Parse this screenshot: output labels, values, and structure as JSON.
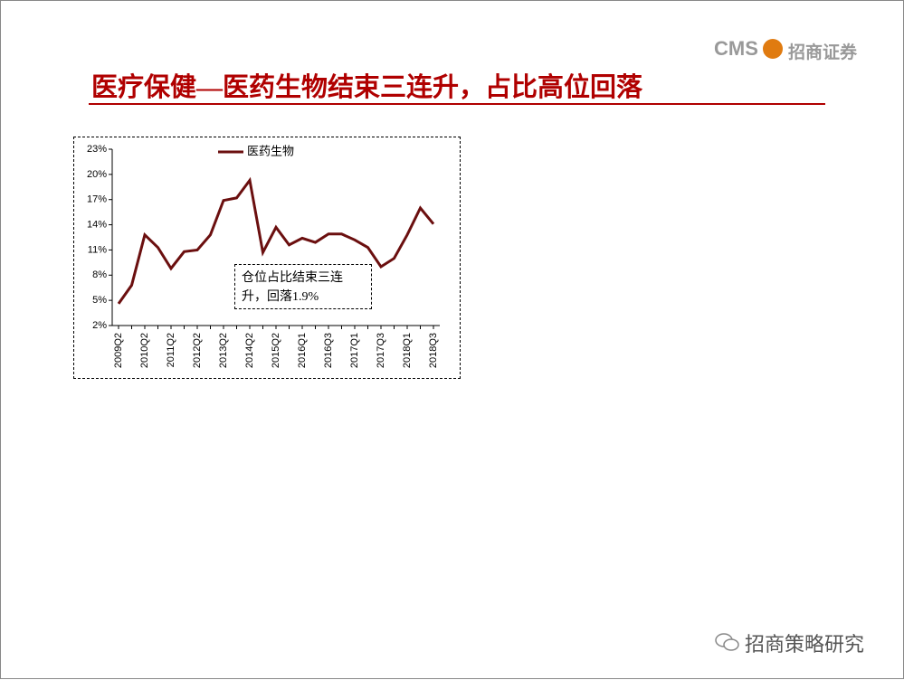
{
  "logo": {
    "brand": "CMS",
    "name": "招商证券"
  },
  "slide_title": "医疗保健—医药生物结束三连升，占比高位回落",
  "footer": "招商策略研究",
  "chart_data": {
    "type": "line",
    "categories": [
      "2009Q2",
      null,
      "2010Q2",
      null,
      "2011Q2",
      null,
      "2012Q2",
      null,
      "2013Q2",
      null,
      "2014Q2",
      null,
      "2015Q2",
      null,
      "2016Q1",
      null,
      "2016Q3",
      null,
      "2017Q1",
      null,
      "2017Q3",
      null,
      "2018Q1",
      null,
      "2018Q3"
    ],
    "series": [
      {
        "name": "医药生物",
        "color": "#6b0f0f",
        "values": [
          4.6,
          6.8,
          12.8,
          11.3,
          8.8,
          10.8,
          11.0,
          12.8,
          16.9,
          17.2,
          19.3,
          10.7,
          13.7,
          11.6,
          12.4,
          11.9,
          12.9,
          12.9,
          12.2,
          11.3,
          9.0,
          10.0,
          12.8,
          16.0,
          14.1
        ]
      }
    ],
    "ylim": [
      2,
      23
    ],
    "yticks": [
      {
        "value": 2,
        "label": "2%"
      },
      {
        "value": 5,
        "label": "5%"
      },
      {
        "value": 8,
        "label": "8%"
      },
      {
        "value": 11,
        "label": "11%"
      },
      {
        "value": 14,
        "label": "14%"
      },
      {
        "value": 17,
        "label": "17%"
      },
      {
        "value": 20,
        "label": "20%"
      },
      {
        "value": 23,
        "label": "23%"
      }
    ],
    "annotation": "仓位占比结束三连升，回落1.9%"
  }
}
